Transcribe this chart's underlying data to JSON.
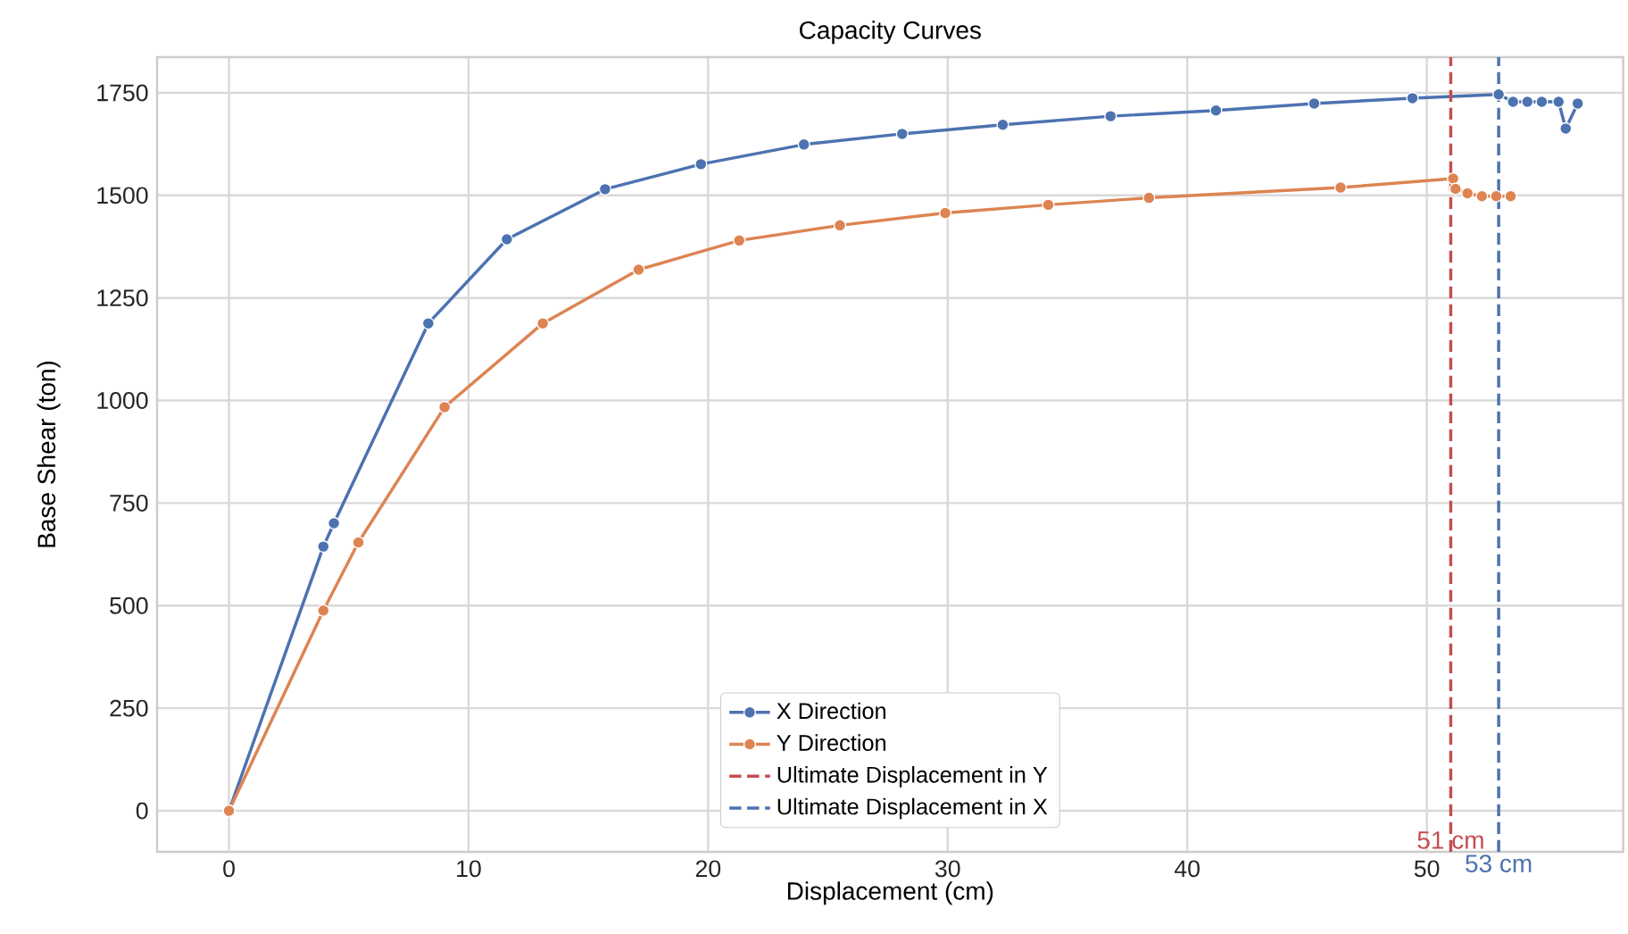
{
  "chart_data": {
    "type": "line",
    "title": "Capacity Curves",
    "xlabel": "Displacement (cm)",
    "ylabel": "Base Shear (ton)",
    "xlim": [
      -3,
      58.2
    ],
    "ylim": [
      -100,
      1837
    ],
    "xticks": [
      0,
      10,
      20,
      30,
      40,
      50
    ],
    "yticks": [
      0,
      250,
      500,
      750,
      1000,
      1250,
      1500,
      1750
    ],
    "grid": true,
    "legend": "bottom",
    "marker": "circle",
    "series": [
      {
        "name": "X Direction",
        "color": "#4c72b0",
        "x": [
          0,
          3.94,
          4.38,
          8.32,
          11.6,
          15.7,
          19.7,
          24.0,
          28.1,
          32.3,
          36.8,
          41.2,
          45.3,
          49.4,
          53.0,
          53.6,
          54.2,
          54.8,
          55.5,
          55.8,
          56.3
        ],
        "values": [
          0,
          644,
          701,
          1188,
          1393,
          1515,
          1576,
          1624,
          1650,
          1672,
          1693,
          1707,
          1724,
          1737,
          1746,
          1728,
          1728,
          1728,
          1728,
          1663,
          1724
        ]
      },
      {
        "name": "Y Direction",
        "color": "#dd8452",
        "x": [
          0,
          3.94,
          5.4,
          9.0,
          13.1,
          17.1,
          21.3,
          25.5,
          29.9,
          34.2,
          38.4,
          46.4,
          51.1,
          51.2,
          51.7,
          52.3,
          52.9,
          53.5
        ],
        "values": [
          0,
          488,
          654,
          984,
          1188,
          1319,
          1390,
          1427,
          1457,
          1477,
          1494,
          1519,
          1541,
          1516,
          1505,
          1498,
          1498,
          1498
        ]
      },
      {
        "name": "Ultimate Displacement in Y",
        "color": "#c44e52",
        "marker": "none",
        "line_style": "dashed",
        "x": [
          51,
          51
        ],
        "values": [
          -100,
          1837
        ]
      },
      {
        "name": "Ultimate Displacement in X",
        "color": "#4c72b0",
        "marker": "none",
        "line_style": "dashed",
        "x": [
          53,
          53
        ],
        "values": [
          -100,
          1837
        ]
      }
    ],
    "annotations": [
      {
        "text": "51 cm",
        "x": 51,
        "y": -100
      },
      {
        "text": "53 cm",
        "x": 53,
        "y": -100
      }
    ]
  }
}
